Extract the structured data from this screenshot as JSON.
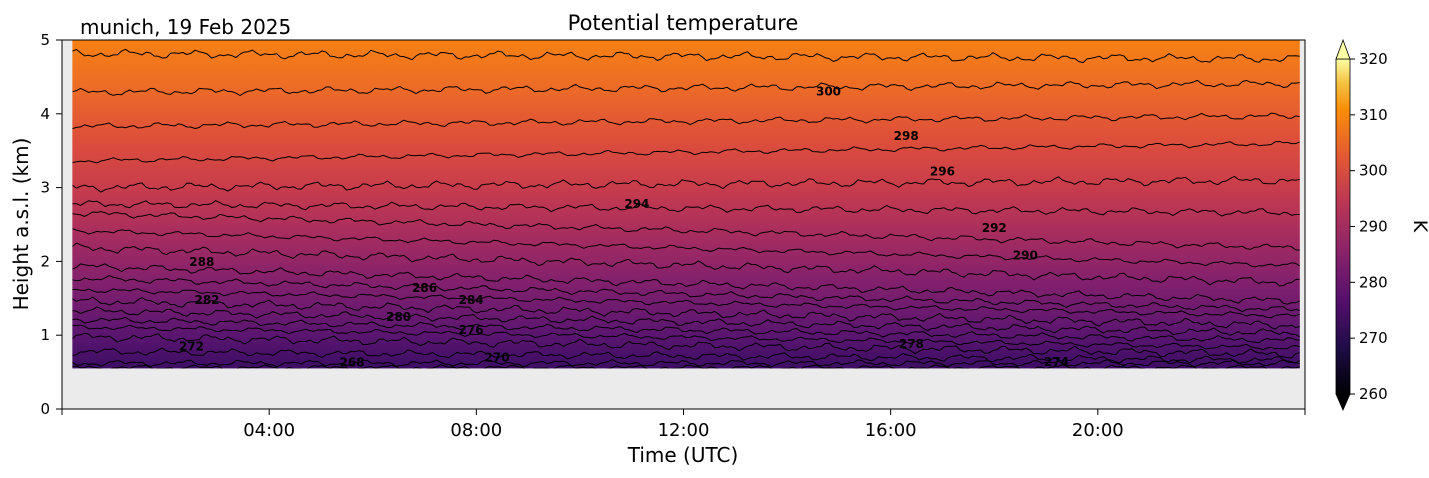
{
  "chart_data": {
    "type": "heatmap",
    "title": "Potential temperature",
    "subtitle": "munich, 19 Feb 2025",
    "xlabel": "Time (UTC)",
    "ylabel": "Height a.s.l. (km)",
    "xlim": [
      0,
      24
    ],
    "ylim": [
      0,
      5
    ],
    "x_ticks": [
      {
        "value": 4,
        "label": "04:00"
      },
      {
        "value": 8,
        "label": "08:00"
      },
      {
        "value": 12,
        "label": "12:00"
      },
      {
        "value": 16,
        "label": "16:00"
      },
      {
        "value": 20,
        "label": "20:00"
      }
    ],
    "y_ticks": [
      {
        "value": 0,
        "label": "0"
      },
      {
        "value": 1,
        "label": "1"
      },
      {
        "value": 2,
        "label": "2"
      },
      {
        "value": 3,
        "label": "3"
      },
      {
        "value": 4,
        "label": "4"
      },
      {
        "value": 5,
        "label": "5"
      }
    ],
    "data_extent": {
      "time": [
        0.2,
        23.9
      ],
      "height_km": [
        0.55,
        5
      ]
    },
    "missing_color": "#ebebeb",
    "colormap": "inferno",
    "colorbar": {
      "label": "K",
      "min": 260,
      "max": 320,
      "ticks": [
        "260",
        "270",
        "280",
        "290",
        "300",
        "310",
        "320"
      ],
      "extend": "both"
    },
    "contour_levels": [
      {
        "level": 266,
        "height_km": 0.56,
        "slope": 0.0
      },
      {
        "level": 268,
        "height_km": 0.62,
        "slope": 0.0
      },
      {
        "level": 270,
        "height_km": 0.72,
        "slope": -0.005
      },
      {
        "level": 272,
        "height_km": 0.86,
        "slope": -0.01
      },
      {
        "level": 274,
        "height_km": 0.97,
        "slope": -0.012
      },
      {
        "level": 276,
        "height_km": 1.07,
        "slope": -0.012
      },
      {
        "level": 278,
        "height_km": 1.18,
        "slope": -0.013
      },
      {
        "level": 280,
        "height_km": 1.3,
        "slope": -0.014
      },
      {
        "level": 282,
        "height_km": 1.44,
        "slope": -0.015
      },
      {
        "level": 284,
        "height_km": 1.56,
        "slope": -0.018
      },
      {
        "level": 286,
        "height_km": 1.7,
        "slope": -0.02
      },
      {
        "level": 288,
        "height_km": 1.95,
        "slope": -0.02
      },
      {
        "level": 290,
        "height_km": 2.18,
        "slope": -0.02
      },
      {
        "level": 292,
        "height_km": 2.42,
        "slope": -0.02
      },
      {
        "level": 294,
        "height_km": 2.72,
        "slope": -0.005
      },
      {
        "level": 296,
        "height_km": 3.05,
        "slope": 0.004
      },
      {
        "level": 298,
        "height_km": 3.48,
        "slope": 0.01
      },
      {
        "level": 300,
        "height_km": 3.9,
        "slope": 0.006
      },
      {
        "level": 302,
        "height_km": 4.35,
        "slope": 0.005
      },
      {
        "level": 304,
        "height_km": 4.78,
        "slope": -0.003
      }
    ],
    "contour_labels": [
      {
        "text": "300",
        "x": 14.8,
        "y": 4.3
      },
      {
        "text": "298",
        "x": 16.3,
        "y": 3.7
      },
      {
        "text": "296",
        "x": 17.0,
        "y": 3.22
      },
      {
        "text": "294",
        "x": 11.1,
        "y": 2.78
      },
      {
        "text": "292",
        "x": 18.0,
        "y": 2.45
      },
      {
        "text": "290",
        "x": 18.6,
        "y": 2.08
      },
      {
        "text": "288",
        "x": 2.7,
        "y": 1.99
      },
      {
        "text": "286",
        "x": 7.0,
        "y": 1.64
      },
      {
        "text": "284",
        "x": 7.9,
        "y": 1.48
      },
      {
        "text": "282",
        "x": 2.8,
        "y": 1.48
      },
      {
        "text": "280",
        "x": 6.5,
        "y": 1.25
      },
      {
        "text": "276",
        "x": 7.9,
        "y": 1.07
      },
      {
        "text": "278",
        "x": 16.4,
        "y": 0.88
      },
      {
        "text": "272",
        "x": 2.5,
        "y": 0.85
      },
      {
        "text": "270",
        "x": 8.4,
        "y": 0.7
      },
      {
        "text": "268",
        "x": 5.6,
        "y": 0.63
      },
      {
        "text": "274",
        "x": 19.2,
        "y": 0.64
      }
    ],
    "legend": "colorbar-right",
    "grid": false
  }
}
